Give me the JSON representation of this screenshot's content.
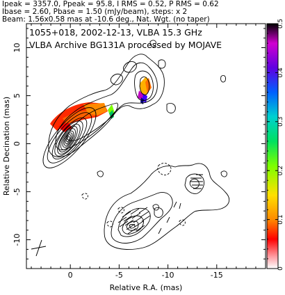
{
  "header": {
    "line1": "Ipeak = 3357.0, Ppeak = 95.8, I RMS = 0.52, P RMS = 0.62",
    "line2": "Ibase = 2.60, Pbase = 1.50 (mJy/beam), steps: x 2",
    "line3": "Beam: 1.56x0.58 mas at -10.6 deg., Nat. Wgt. (no taper)"
  },
  "chart_data": {
    "type": "contour-map",
    "title": "1055+018, 2002-12-13, VLBA 15.3 GHz",
    "subtitle": "VLBA Archive BG131A processed by MOJAVE",
    "xlabel": "Relative R.A. (mas)",
    "ylabel": "Relative Decination (mas)",
    "xlim": [
      4.5,
      -20
    ],
    "ylim": [
      -13,
      12.5
    ],
    "x_ticks": [
      0,
      -5,
      -10,
      -15
    ],
    "y_ticks": [
      10,
      5,
      0,
      -5,
      -10
    ],
    "grid": false,
    "colorbar": {
      "position": "right",
      "range": [
        0,
        0.5
      ],
      "ticks": [
        0,
        0.1,
        0.2,
        0.3,
        0.4,
        0.5
      ]
    }
  }
}
